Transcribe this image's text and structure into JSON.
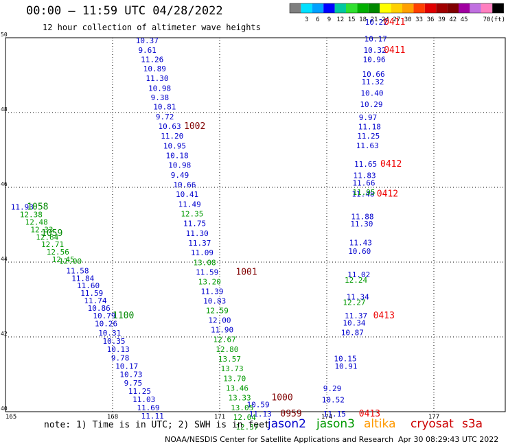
{
  "title": "00:00 – 11:59 UTC 04/28/2022",
  "subtitle": "12 hour collection of altimeter wave heights",
  "note": "note: 1) Time is in UTC; 2) SWH is in feet",
  "credit": "NOAA/NESDIS Center for Satellite Applications and Research",
  "timestamp": "Apr 30 08:29:43 UTC 2022",
  "colorbar": {
    "colors": [
      "#7f7f7f",
      "#00e0ff",
      "#00a0ff",
      "#0000ff",
      "#00c8a0",
      "#30e030",
      "#00b000",
      "#008800",
      "#ffff00",
      "#ffd000",
      "#ffa000",
      "#ff4000",
      "#e00000",
      "#a00000",
      "#800000",
      "#a000a0",
      "#c070e0",
      "#ff80c0",
      "#000000"
    ],
    "ticks": [
      "3",
      "6",
      "9",
      "12",
      "15",
      "18",
      "21",
      "24",
      "27",
      "30",
      "33",
      "36",
      "39",
      "42",
      "45",
      "70"
    ],
    "unit": "(ft)"
  },
  "legend": [
    {
      "name": "jason2",
      "color": "#0000cc"
    },
    {
      "name": "jason3",
      "color": "#009900"
    },
    {
      "name": "altika",
      "color": "#ff9900"
    },
    {
      "name": "cryosat",
      "color": "#cc0000"
    },
    {
      "name": "s3a",
      "color": "#cc0000"
    }
  ],
  "chart_data": {
    "type": "scatter",
    "xlim": [
      165,
      179
    ],
    "ylim": [
      40,
      50
    ],
    "xticks": [
      "165",
      "168",
      "171",
      "174",
      "177"
    ],
    "yticks": [
      "40",
      "42",
      "44",
      "46",
      "48",
      "50"
    ],
    "grid": true,
    "series": [
      {
        "name": "jason2",
        "color": "#0000cc",
        "points": [
          {
            "x": 168.65,
            "y": 49.85,
            "label": "10.37"
          },
          {
            "x": 168.72,
            "y": 49.6,
            "label": "9.61"
          },
          {
            "x": 168.79,
            "y": 49.35,
            "label": "11.26"
          },
          {
            "x": 168.86,
            "y": 49.1,
            "label": "10.89"
          },
          {
            "x": 168.93,
            "y": 48.84,
            "label": "11.30"
          },
          {
            "x": 169.0,
            "y": 48.58,
            "label": "10.98"
          },
          {
            "x": 169.07,
            "y": 48.33,
            "label": "9.38"
          },
          {
            "x": 169.14,
            "y": 48.08,
            "label": "10.81"
          },
          {
            "x": 169.21,
            "y": 47.82,
            "label": "9.72"
          },
          {
            "x": 169.28,
            "y": 47.56,
            "label": "10.63"
          },
          {
            "x": 169.35,
            "y": 47.3,
            "label": "11.20"
          },
          {
            "x": 169.42,
            "y": 47.04,
            "label": "10.95"
          },
          {
            "x": 169.49,
            "y": 46.78,
            "label": "10.18"
          },
          {
            "x": 169.56,
            "y": 46.52,
            "label": "10.98"
          },
          {
            "x": 169.63,
            "y": 46.26,
            "label": "9.49"
          },
          {
            "x": 169.7,
            "y": 46.0,
            "label": "10.66"
          },
          {
            "x": 169.77,
            "y": 45.74,
            "label": "10.41"
          },
          {
            "x": 169.84,
            "y": 45.48,
            "label": "11.49"
          },
          {
            "x": 169.98,
            "y": 44.96,
            "label": "11.75"
          },
          {
            "x": 170.05,
            "y": 44.7,
            "label": "11.30"
          },
          {
            "x": 170.12,
            "y": 44.44,
            "label": "11.37"
          },
          {
            "x": 170.19,
            "y": 44.18,
            "label": "11.09"
          },
          {
            "x": 170.33,
            "y": 43.66,
            "label": "11.59"
          },
          {
            "x": 170.47,
            "y": 43.15,
            "label": "11.39"
          },
          {
            "x": 170.54,
            "y": 42.89,
            "label": "10.83"
          },
          {
            "x": 170.68,
            "y": 42.38,
            "label": "12.00"
          },
          {
            "x": 170.75,
            "y": 42.12,
            "label": "11.90"
          },
          {
            "x": 171.76,
            "y": 40.12,
            "label": "10.59"
          },
          {
            "x": 171.82,
            "y": 39.87,
            "label": "11.13"
          },
          {
            "x": 173.86,
            "y": 40.25,
            "label": "10.52"
          },
          {
            "x": 173.9,
            "y": 39.87,
            "label": "11.15"
          },
          {
            "x": 173.9,
            "y": 40.55,
            "label": "9.29"
          },
          {
            "x": 174.2,
            "y": 41.35,
            "label": "10.15"
          },
          {
            "x": 174.22,
            "y": 41.15,
            "label": "10.91"
          },
          {
            "x": 174.4,
            "y": 42.05,
            "label": "10.87"
          },
          {
            "x": 174.45,
            "y": 42.3,
            "label": "10.34"
          },
          {
            "x": 174.5,
            "y": 42.5,
            "label": "11.37"
          },
          {
            "x": 174.55,
            "y": 43.0,
            "label": "11.34"
          },
          {
            "x": 174.58,
            "y": 43.6,
            "label": "11.02"
          },
          {
            "x": 174.6,
            "y": 44.22,
            "label": "10.60"
          },
          {
            "x": 174.63,
            "y": 44.45,
            "label": "11.43"
          },
          {
            "x": 174.66,
            "y": 44.95,
            "label": "11.30"
          },
          {
            "x": 174.68,
            "y": 45.15,
            "label": "11.88"
          },
          {
            "x": 174.7,
            "y": 45.75,
            "label": "11.48"
          },
          {
            "x": 174.72,
            "y": 46.05,
            "label": "11.66"
          },
          {
            "x": 174.74,
            "y": 46.25,
            "label": "11.83"
          },
          {
            "x": 174.77,
            "y": 46.55,
            "label": "11.65"
          },
          {
            "x": 174.82,
            "y": 47.05,
            "label": "11.63"
          },
          {
            "x": 174.85,
            "y": 47.3,
            "label": "11.25"
          },
          {
            "x": 174.88,
            "y": 47.55,
            "label": "11.18"
          },
          {
            "x": 174.9,
            "y": 47.8,
            "label": "9.97"
          },
          {
            "x": 174.93,
            "y": 48.15,
            "label": "10.29"
          },
          {
            "x": 174.95,
            "y": 48.45,
            "label": "10.40"
          },
          {
            "x": 174.97,
            "y": 48.75,
            "label": "11.32"
          },
          {
            "x": 174.99,
            "y": 48.95,
            "label": "10.66"
          },
          {
            "x": 175.01,
            "y": 49.35,
            "label": "10.96"
          },
          {
            "x": 175.03,
            "y": 49.6,
            "label": "10.32"
          },
          {
            "x": 175.05,
            "y": 49.9,
            "label": "10.17"
          },
          {
            "x": 175.07,
            "y": 50.35,
            "label": "10.22"
          },
          {
            "x": 165.15,
            "y": 45.4,
            "label": "11.93"
          },
          {
            "x": 166.7,
            "y": 43.7,
            "label": "11.58"
          },
          {
            "x": 166.85,
            "y": 43.5,
            "label": "11.84"
          },
          {
            "x": 167.0,
            "y": 43.3,
            "label": "11.60"
          },
          {
            "x": 167.1,
            "y": 43.1,
            "label": "11.59"
          },
          {
            "x": 167.2,
            "y": 42.9,
            "label": "11.74"
          },
          {
            "x": 167.3,
            "y": 42.7,
            "label": "10.86"
          },
          {
            "x": 167.45,
            "y": 42.5,
            "label": "10.79"
          },
          {
            "x": 167.5,
            "y": 42.28,
            "label": "10.26"
          },
          {
            "x": 167.6,
            "y": 42.04,
            "label": "10.31"
          },
          {
            "x": 167.72,
            "y": 41.82,
            "label": "10.35"
          },
          {
            "x": 167.84,
            "y": 41.6,
            "label": "10.13"
          },
          {
            "x": 167.96,
            "y": 41.37,
            "label": "9.78"
          },
          {
            "x": 168.08,
            "y": 41.15,
            "label": "10.17"
          },
          {
            "x": 168.2,
            "y": 40.93,
            "label": "10.73"
          },
          {
            "x": 168.32,
            "y": 40.7,
            "label": "9.75"
          },
          {
            "x": 168.44,
            "y": 40.48,
            "label": "11.25"
          },
          {
            "x": 168.56,
            "y": 40.26,
            "label": "11.03"
          },
          {
            "x": 168.68,
            "y": 40.04,
            "label": "11.69"
          },
          {
            "x": 168.8,
            "y": 39.82,
            "label": "11.11"
          }
        ]
      },
      {
        "name": "jason3",
        "color": "#009900",
        "points": [
          {
            "x": 169.91,
            "y": 45.22,
            "label": "12.35"
          },
          {
            "x": 170.26,
            "y": 43.92,
            "label": "13.08"
          },
          {
            "x": 170.4,
            "y": 43.4,
            "label": "13.20"
          },
          {
            "x": 170.61,
            "y": 42.63,
            "label": "12.59"
          },
          {
            "x": 170.82,
            "y": 41.86,
            "label": "12.67"
          },
          {
            "x": 170.89,
            "y": 41.6,
            "label": "12.80"
          },
          {
            "x": 170.96,
            "y": 41.34,
            "label": "13.57"
          },
          {
            "x": 171.03,
            "y": 41.08,
            "label": "13.73"
          },
          {
            "x": 171.1,
            "y": 40.82,
            "label": "13.70"
          },
          {
            "x": 171.17,
            "y": 40.56,
            "label": "13.46"
          },
          {
            "x": 171.24,
            "y": 40.3,
            "label": "13.33"
          },
          {
            "x": 171.31,
            "y": 40.04,
            "label": "13.05"
          },
          {
            "x": 171.38,
            "y": 39.78,
            "label": "12.04"
          },
          {
            "x": 171.45,
            "y": 39.52,
            "label": "12.37"
          },
          {
            "x": 174.5,
            "y": 43.45,
            "label": "12.24"
          },
          {
            "x": 174.45,
            "y": 42.85,
            "label": "12.27"
          },
          {
            "x": 174.72,
            "y": 45.8,
            "label": "11.95"
          },
          {
            "x": 165.4,
            "y": 45.2,
            "label": "12.38"
          },
          {
            "x": 165.55,
            "y": 45.0,
            "label": "12.48"
          },
          {
            "x": 165.7,
            "y": 44.8,
            "label": "12.33"
          },
          {
            "x": 165.85,
            "y": 44.6,
            "label": "12.64"
          },
          {
            "x": 166.0,
            "y": 44.4,
            "label": "12.71"
          },
          {
            "x": 166.15,
            "y": 44.2,
            "label": "12.56"
          },
          {
            "x": 166.3,
            "y": 44.0,
            "label": "12.45"
          },
          {
            "x": 166.5,
            "y": 43.95,
            "label": "12.00"
          }
        ]
      },
      {
        "name": "cryosat",
        "color": "#cc0000",
        "points": []
      }
    ],
    "time_labels": [
      {
        "x": 170.0,
        "y": 47.56,
        "label": "1002",
        "color": "#800000"
      },
      {
        "x": 171.45,
        "y": 43.66,
        "label": "1001",
        "color": "#800000"
      },
      {
        "x": 172.45,
        "y": 40.3,
        "label": "1000",
        "color": "#800000"
      },
      {
        "x": 172.7,
        "y": 39.87,
        "label": "0959",
        "color": "#800000"
      },
      {
        "x": 175.6,
        "y": 50.35,
        "label": "0411",
        "color": "#ee0000"
      },
      {
        "x": 175.6,
        "y": 49.6,
        "label": "0411",
        "color": "#ee0000"
      },
      {
        "x": 175.5,
        "y": 46.55,
        "label": "0412",
        "color": "#ee0000"
      },
      {
        "x": 175.4,
        "y": 45.75,
        "label": "0412",
        "color": "#ee0000"
      },
      {
        "x": 175.3,
        "y": 42.5,
        "label": "0413",
        "color": "#ee0000"
      },
      {
        "x": 174.9,
        "y": 39.87,
        "label": "0413",
        "color": "#ee0000"
      },
      {
        "x": 165.6,
        "y": 45.4,
        "label": "1058",
        "color": "#008800"
      },
      {
        "x": 166.0,
        "y": 44.7,
        "label": "1059",
        "color": "#008800"
      },
      {
        "x": 168.0,
        "y": 42.5,
        "label": "1100",
        "color": "#008800"
      }
    ]
  }
}
